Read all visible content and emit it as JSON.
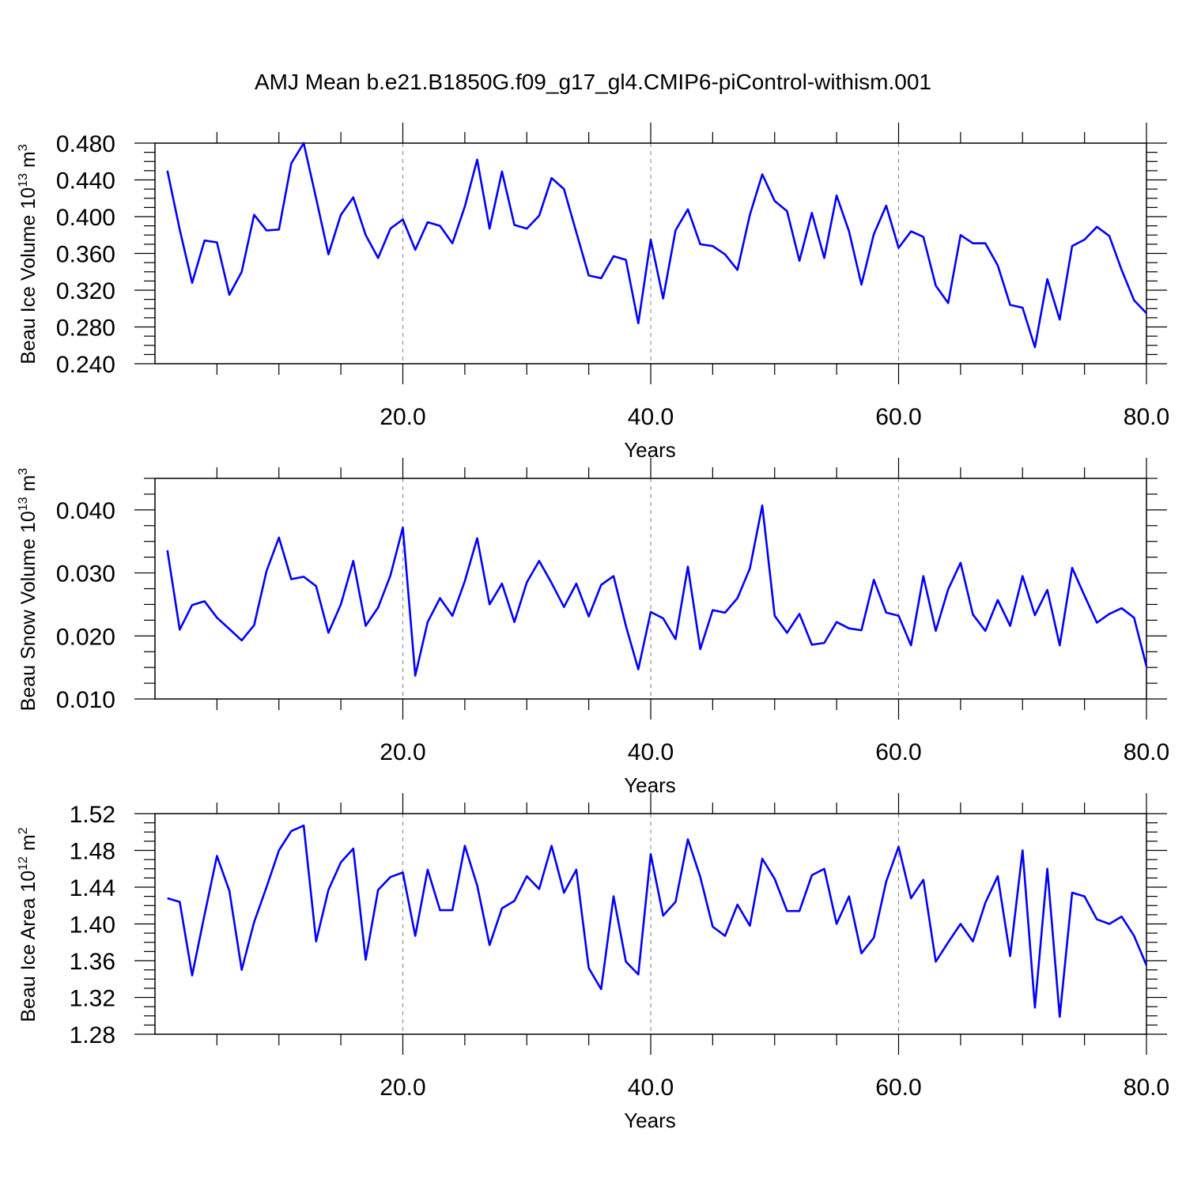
{
  "title": "AMJ Mean b.e21.B1850G.f09_g17_gl4.CMIP6-piControl-withism.001",
  "colors": {
    "series": "#0000ff",
    "axes": "#000000",
    "grid": "#808080"
  },
  "chart_data": [
    {
      "type": "line",
      "xlabel": "Years",
      "ylabel": "Beau Ice Volume 10",
      "ylabel_exp": "13",
      "ylabel_unit": " m",
      "ylabel_unit_exp": "3",
      "xlim": [
        0,
        80
      ],
      "ylim": [
        0.24,
        0.48
      ],
      "xticks": [
        20,
        40,
        60,
        80
      ],
      "xtick_labels": [
        "20.0",
        "40.0",
        "60.0",
        "80.0"
      ],
      "yticks": [
        0.24,
        0.28,
        0.32,
        0.36,
        0.4,
        0.44,
        0.48
      ],
      "ytick_labels": [
        "0.240",
        "0.280",
        "0.320",
        "0.360",
        "0.400",
        "0.440",
        "0.480"
      ],
      "grid": "vertical dashed at major x ticks",
      "x": [
        1,
        2,
        3,
        4,
        5,
        6,
        7,
        8,
        9,
        10,
        11,
        12,
        13,
        14,
        15,
        16,
        17,
        18,
        19,
        20,
        21,
        22,
        23,
        24,
        25,
        26,
        27,
        28,
        29,
        30,
        31,
        32,
        33,
        34,
        35,
        36,
        37,
        38,
        39,
        40,
        41,
        42,
        43,
        44,
        45,
        46,
        47,
        48,
        49,
        50,
        51,
        52,
        53,
        54,
        55,
        56,
        57,
        58,
        59,
        60,
        61,
        62,
        63,
        64,
        65,
        66,
        67,
        68,
        69,
        70,
        71,
        72,
        73,
        74,
        75,
        76,
        77,
        78,
        79,
        80
      ],
      "series": [
        {
          "values": [
            0.45,
            0.386,
            0.328,
            0.374,
            0.372,
            0.315,
            0.34,
            0.402,
            0.385,
            0.386,
            0.458,
            0.48,
            0.42,
            0.359,
            0.402,
            0.421,
            0.38,
            0.355,
            0.387,
            0.397,
            0.364,
            0.394,
            0.39,
            0.371,
            0.411,
            0.462,
            0.387,
            0.449,
            0.391,
            0.387,
            0.401,
            0.442,
            0.43,
            0.383,
            0.336,
            0.333,
            0.357,
            0.353,
            0.284,
            0.375,
            0.311,
            0.385,
            0.408,
            0.37,
            0.368,
            0.359,
            0.342,
            0.402,
            0.446,
            0.417,
            0.406,
            0.352,
            0.404,
            0.355,
            0.423,
            0.384,
            0.326,
            0.381,
            0.412,
            0.366,
            0.384,
            0.378,
            0.325,
            0.306,
            0.38,
            0.371,
            0.371,
            0.347,
            0.304,
            0.301,
            0.258,
            0.332,
            0.288,
            0.368,
            0.375,
            0.389,
            0.379,
            0.342,
            0.309,
            0.295
          ]
        }
      ]
    },
    {
      "type": "line",
      "xlabel": "Years",
      "ylabel": "Beau Snow Volume 10",
      "ylabel_exp": "13",
      "ylabel_unit": " m",
      "ylabel_unit_exp": "3",
      "xlim": [
        0,
        80
      ],
      "ylim": [
        0.01,
        0.045
      ],
      "xticks": [
        20,
        40,
        60,
        80
      ],
      "xtick_labels": [
        "20.0",
        "40.0",
        "60.0",
        "80.0"
      ],
      "yticks": [
        0.01,
        0.02,
        0.03,
        0.04
      ],
      "ytick_labels": [
        "0.010",
        "0.020",
        "0.030",
        "0.040"
      ],
      "grid": "vertical dashed at major x ticks",
      "x": [
        1,
        2,
        3,
        4,
        5,
        6,
        7,
        8,
        9,
        10,
        11,
        12,
        13,
        14,
        15,
        16,
        17,
        18,
        19,
        20,
        21,
        22,
        23,
        24,
        25,
        26,
        27,
        28,
        29,
        30,
        31,
        32,
        33,
        34,
        35,
        36,
        37,
        38,
        39,
        40,
        41,
        42,
        43,
        44,
        45,
        46,
        47,
        48,
        49,
        50,
        51,
        52,
        53,
        54,
        55,
        56,
        57,
        58,
        59,
        60,
        61,
        62,
        63,
        64,
        65,
        66,
        67,
        68,
        69,
        70,
        71,
        72,
        73,
        74,
        75,
        76,
        77,
        78,
        79,
        80
      ],
      "series": [
        {
          "values": [
            0.0336,
            0.021,
            0.0249,
            0.0255,
            0.0229,
            0.0211,
            0.0193,
            0.0217,
            0.0303,
            0.0356,
            0.029,
            0.0294,
            0.0279,
            0.0205,
            0.025,
            0.0319,
            0.0216,
            0.0245,
            0.0296,
            0.0372,
            0.0137,
            0.0222,
            0.026,
            0.0232,
            0.0287,
            0.0355,
            0.025,
            0.0283,
            0.0222,
            0.0285,
            0.0319,
            0.0284,
            0.0246,
            0.0283,
            0.0231,
            0.0281,
            0.0295,
            0.0216,
            0.0147,
            0.0238,
            0.0228,
            0.0195,
            0.031,
            0.0179,
            0.0241,
            0.0237,
            0.026,
            0.0307,
            0.0407,
            0.0232,
            0.0205,
            0.0235,
            0.0186,
            0.0189,
            0.0222,
            0.0212,
            0.0209,
            0.0289,
            0.0237,
            0.0232,
            0.0185,
            0.0295,
            0.0208,
            0.0274,
            0.0316,
            0.0234,
            0.0208,
            0.0257,
            0.0216,
            0.0295,
            0.0233,
            0.0273,
            0.0185,
            0.0308,
            0.0264,
            0.0221,
            0.0235,
            0.0244,
            0.0229,
            0.0152
          ]
        }
      ]
    },
    {
      "type": "line",
      "xlabel": "Years",
      "ylabel": "Beau Ice Area 10",
      "ylabel_exp": "12",
      "ylabel_unit": " m",
      "ylabel_unit_exp": "2",
      "xlim": [
        0,
        80
      ],
      "ylim": [
        1.28,
        1.52
      ],
      "xticks": [
        20,
        40,
        60,
        80
      ],
      "xtick_labels": [
        "20.0",
        "40.0",
        "60.0",
        "80.0"
      ],
      "yticks": [
        1.28,
        1.32,
        1.36,
        1.4,
        1.44,
        1.48,
        1.52
      ],
      "ytick_labels": [
        "1.28",
        "1.32",
        "1.36",
        "1.40",
        "1.44",
        "1.48",
        "1.52"
      ],
      "grid": "vertical dashed at major x ticks",
      "x": [
        1,
        2,
        3,
        4,
        5,
        6,
        7,
        8,
        9,
        10,
        11,
        12,
        13,
        14,
        15,
        16,
        17,
        18,
        19,
        20,
        21,
        22,
        23,
        24,
        25,
        26,
        27,
        28,
        29,
        30,
        31,
        32,
        33,
        34,
        35,
        36,
        37,
        38,
        39,
        40,
        41,
        42,
        43,
        44,
        45,
        46,
        47,
        48,
        49,
        50,
        51,
        52,
        53,
        54,
        55,
        56,
        57,
        58,
        59,
        60,
        61,
        62,
        63,
        64,
        65,
        66,
        67,
        68,
        69,
        70,
        71,
        72,
        73,
        74,
        75,
        76,
        77,
        78,
        79,
        80
      ],
      "series": [
        {
          "values": [
            1.428,
            1.424,
            1.344,
            1.41,
            1.474,
            1.436,
            1.35,
            1.402,
            1.44,
            1.48,
            1.501,
            1.507,
            1.381,
            1.437,
            1.467,
            1.482,
            1.361,
            1.437,
            1.451,
            1.456,
            1.387,
            1.459,
            1.415,
            1.415,
            1.485,
            1.442,
            1.377,
            1.417,
            1.425,
            1.452,
            1.438,
            1.485,
            1.434,
            1.459,
            1.352,
            1.329,
            1.43,
            1.359,
            1.345,
            1.476,
            1.409,
            1.424,
            1.492,
            1.451,
            1.397,
            1.387,
            1.421,
            1.398,
            1.471,
            1.449,
            1.414,
            1.414,
            1.453,
            1.46,
            1.4,
            1.43,
            1.368,
            1.385,
            1.446,
            1.484,
            1.428,
            1.448,
            1.359,
            1.38,
            1.4,
            1.381,
            1.423,
            1.452,
            1.365,
            1.48,
            1.309,
            1.46,
            1.299,
            1.434,
            1.43,
            1.405,
            1.4,
            1.408,
            1.387,
            1.355
          ]
        }
      ]
    }
  ]
}
